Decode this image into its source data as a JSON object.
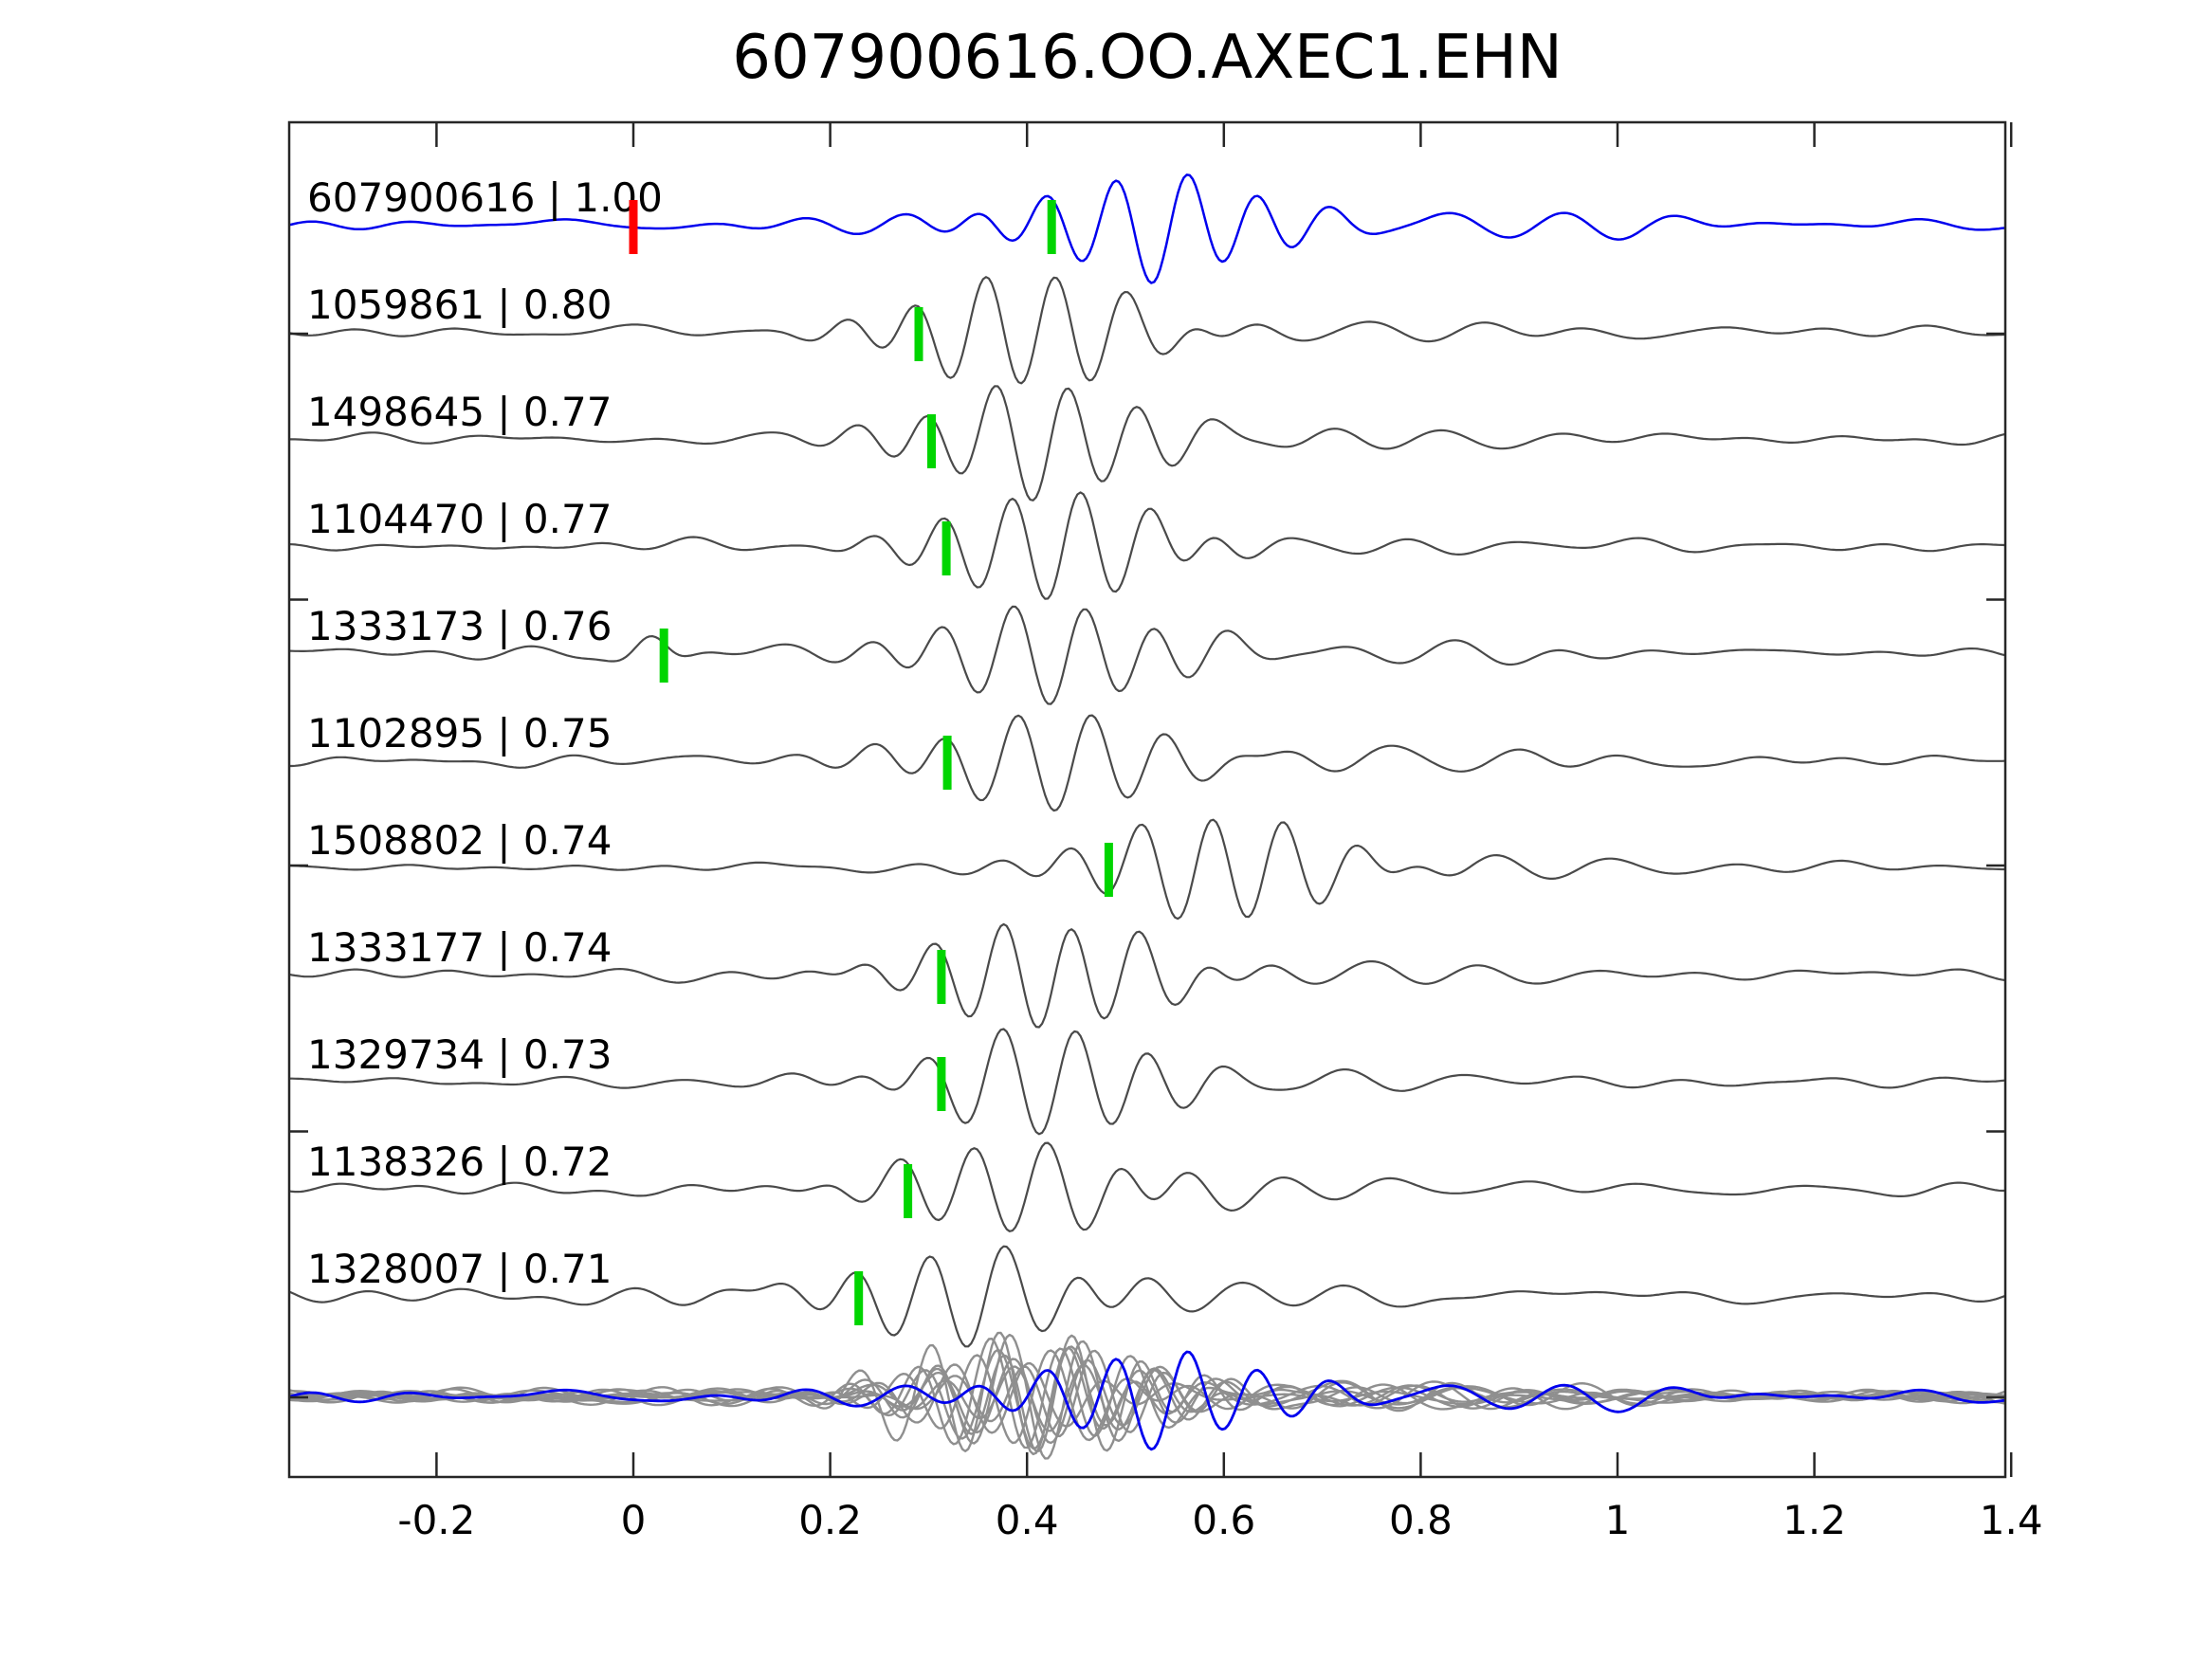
{
  "title": "607900616.OO.AXEC1.EHN",
  "colors": {
    "background": "#ffffff",
    "template_trace": "#0000ee",
    "detection_trace": "#4a4a4a",
    "stack_trace": "#8f8f8f",
    "pick_marker": "#00d500",
    "template_origin_marker": "#ff0000",
    "axis": "#262626",
    "text": "#000000"
  },
  "chart_data": {
    "type": "line",
    "title": "607900616.OO.AXEC1.EHN",
    "xlabel": "",
    "ylabel": "",
    "xlim": [
      -0.35,
      1.4
    ],
    "grid": false,
    "legend": "none",
    "x_ticks": [
      -0.2,
      0,
      0.2,
      0.4,
      0.6,
      0.8,
      1,
      1.2,
      1.4
    ],
    "x_tick_labels": [
      "-0.2",
      "0",
      "0.2",
      "0.4",
      "0.6",
      "0.8",
      "1",
      "1.2",
      "1.4"
    ],
    "traces": [
      {
        "id": "607900616",
        "corr": "1.00",
        "label": "607900616 | 1.00",
        "role": "template",
        "color": "#0000ee",
        "markers": [
          {
            "t": 0.0,
            "color": "#ff0000",
            "name": "template-origin"
          },
          {
            "t": 0.425,
            "color": "#00d500",
            "name": "pick"
          }
        ],
        "onset": 0.4,
        "amp": 56,
        "noise": 5,
        "phase": 0,
        "seed": 11
      },
      {
        "id": "1059861",
        "corr": "0.80",
        "label": "1059861 | 0.80",
        "role": "detection",
        "color": "#4a4a4a",
        "markers": [
          {
            "t": 0.29,
            "color": "#00d500",
            "name": "pick"
          }
        ],
        "onset": 0.268,
        "amp": 60,
        "noise": 5,
        "phase": 0,
        "seed": 22
      },
      {
        "id": "1498645",
        "corr": "0.77",
        "label": "1498645 | 0.77",
        "role": "detection",
        "color": "#4a4a4a",
        "markers": [
          {
            "t": 0.303,
            "color": "#00d500",
            "name": "pick"
          }
        ],
        "onset": 0.282,
        "amp": 58,
        "noise": 5,
        "phase": 0.3,
        "seed": 33
      },
      {
        "id": "1104470",
        "corr": "0.77",
        "label": "1104470 | 0.77",
        "role": "detection",
        "color": "#4a4a4a",
        "markers": [
          {
            "t": 0.318,
            "color": "#00d500",
            "name": "pick"
          }
        ],
        "onset": 0.298,
        "amp": 56,
        "noise": 5,
        "phase": 0.1,
        "seed": 44
      },
      {
        "id": "1333173",
        "corr": "0.76",
        "label": "1333173 | 0.76",
        "role": "detection",
        "color": "#4a4a4a",
        "markers": [
          {
            "t": 0.031,
            "color": "#00d500",
            "name": "pick"
          }
        ],
        "onset": 0.3,
        "amp": 54,
        "noise": 6,
        "phase": 0.5,
        "seed": 55,
        "prebump": {
          "t": 0.018,
          "amp": 22
        }
      },
      {
        "id": "1102895",
        "corr": "0.75",
        "label": "1102895 | 0.75",
        "role": "detection",
        "color": "#4a4a4a",
        "markers": [
          {
            "t": 0.319,
            "color": "#00d500",
            "name": "pick"
          }
        ],
        "onset": 0.298,
        "amp": 54,
        "noise": 6,
        "phase": 0.2,
        "seed": 66
      },
      {
        "id": "1508802",
        "corr": "0.74",
        "label": "1508802 | 0.74",
        "role": "detection",
        "color": "#4a4a4a",
        "markers": [
          {
            "t": 0.483,
            "color": "#00d500",
            "name": "pick"
          }
        ],
        "onset": 0.462,
        "amp": 58,
        "noise": 4,
        "phase": 3.3,
        "seed": 77
      },
      {
        "id": "1333177",
        "corr": "0.74",
        "label": "1333177 | 0.74",
        "role": "detection",
        "color": "#4a4a4a",
        "markers": [
          {
            "t": 0.313,
            "color": "#00d500",
            "name": "pick"
          }
        ],
        "onset": 0.292,
        "amp": 58,
        "noise": 5,
        "phase": 0.4,
        "seed": 88
      },
      {
        "id": "1329734",
        "corr": "0.73",
        "label": "1329734 | 0.73",
        "role": "detection",
        "color": "#4a4a4a",
        "markers": [
          {
            "t": 0.313,
            "color": "#00d500",
            "name": "pick"
          }
        ],
        "onset": 0.292,
        "amp": 56,
        "noise": 5,
        "phase": 0.9,
        "seed": 99
      },
      {
        "id": "1138326",
        "corr": "0.72",
        "label": "1138326 | 0.72",
        "role": "detection",
        "color": "#4a4a4a",
        "markers": [
          {
            "t": 0.279,
            "color": "#00d500",
            "name": "pick"
          }
        ],
        "onset": 0.258,
        "amp": 50,
        "noise": 7,
        "phase": 0.6,
        "seed": 110
      },
      {
        "id": "1328007",
        "corr": "0.71",
        "label": "1328007 | 0.71",
        "role": "detection",
        "color": "#4a4a4a",
        "markers": [
          {
            "t": 0.229,
            "color": "#00d500",
            "name": "pick"
          }
        ],
        "onset": 0.208,
        "amp": 52,
        "noise": 8,
        "phase": 0.2,
        "seed": 121
      }
    ],
    "stack": {
      "description": "all detections overlaid, aligned, with blue template on top",
      "gray": [
        {
          "onset": 0.27,
          "amp": 62,
          "noise": 6,
          "phase": 0.0,
          "seed": 201
        },
        {
          "onset": 0.3,
          "amp": 45,
          "noise": 6,
          "phase": 0.8,
          "seed": 202
        },
        {
          "onset": 0.24,
          "amp": 66,
          "noise": 6,
          "phase": 2.4,
          "seed": 203
        },
        {
          "onset": 0.31,
          "amp": 38,
          "noise": 6,
          "phase": 1.2,
          "seed": 204
        },
        {
          "onset": 0.28,
          "amp": 55,
          "noise": 6,
          "phase": 0.3,
          "seed": 205
        },
        {
          "onset": 0.33,
          "amp": 42,
          "noise": 6,
          "phase": 2.0,
          "seed": 206
        },
        {
          "onset": 0.26,
          "amp": 50,
          "noise": 6,
          "phase": 0.5,
          "seed": 207
        },
        {
          "onset": 0.29,
          "amp": 65,
          "noise": 6,
          "phase": 0.1,
          "seed": 208
        },
        {
          "onset": 0.25,
          "amp": 35,
          "noise": 6,
          "phase": 1.6,
          "seed": 209
        },
        {
          "onset": 0.3,
          "amp": 58,
          "noise": 6,
          "phase": 0.9,
          "seed": 210
        }
      ],
      "template": {
        "onset": 0.4,
        "amp": 50,
        "noise": 6,
        "phase": 0,
        "seed": 11,
        "color": "#0000ee"
      }
    }
  }
}
